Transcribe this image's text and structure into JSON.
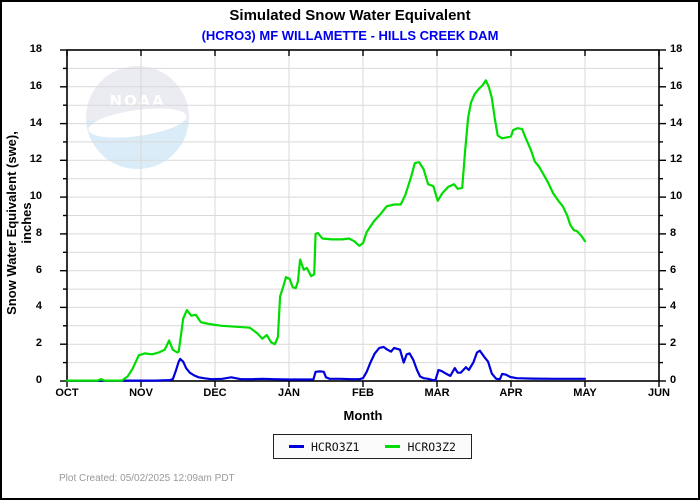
{
  "header": {
    "title": "Simulated Snow Water Equivalent",
    "subtitle": "(HCRO3) MF WILLAMETTE - HILLS CREEK DAM",
    "subtitle_color": "#0000ee"
  },
  "watermark": {
    "text": "NOAA"
  },
  "chart_data": {
    "type": "line",
    "title": "Simulated Snow Water Equivalent",
    "subtitle": "(HCRO3) MF WILLAMETTE - HILLS CREEK DAM",
    "xlabel": "Month",
    "ylabel": "Snow Water Equivalent (swe),  inches",
    "x_tick_labels": [
      "OCT",
      "NOV",
      "DEC",
      "JAN",
      "FEB",
      "MAR",
      "APR",
      "MAY",
      "JUN"
    ],
    "x_unit": "months since Oct 1 (0=OCT ... 8=JUN)",
    "xlim": [
      0,
      8
    ],
    "ylim": [
      0,
      18
    ],
    "y_major_tick_step": 2,
    "y_minor_tick_step": 1,
    "grid": "light gray; horizontal every 1 inch, vertical at each month",
    "legend_position": "below plot, centered",
    "grid_color": "#d9d9d9",
    "series": [
      {
        "name": "HCRO3Z1",
        "color": "#0000dd",
        "x": [
          0.0,
          0.5,
          1.0,
          1.2,
          1.3,
          1.39,
          1.43,
          1.47,
          1.51,
          1.53,
          1.57,
          1.61,
          1.66,
          1.72,
          1.78,
          1.85,
          1.95,
          2.1,
          2.22,
          2.28,
          2.35,
          2.5,
          2.65,
          2.8,
          3.0,
          3.2,
          3.33,
          3.36,
          3.42,
          3.47,
          3.5,
          3.55,
          3.7,
          3.85,
          3.95,
          4.0,
          4.05,
          4.1,
          4.16,
          4.22,
          4.28,
          4.33,
          4.38,
          4.42,
          4.46,
          4.5,
          4.55,
          4.59,
          4.63,
          4.68,
          4.73,
          4.77,
          4.82,
          4.88,
          4.94,
          4.98,
          5.02,
          5.06,
          5.12,
          5.18,
          5.24,
          5.28,
          5.32,
          5.39,
          5.43,
          5.49,
          5.54,
          5.58,
          5.64,
          5.69,
          5.74,
          5.8,
          5.85,
          5.88,
          5.93,
          5.99,
          6.08,
          6.3,
          6.6,
          7.0
        ],
        "y": [
          0.02,
          0.02,
          0.02,
          0.02,
          0.03,
          0.05,
          0.1,
          0.55,
          1.05,
          1.2,
          1.05,
          0.7,
          0.45,
          0.3,
          0.2,
          0.15,
          0.1,
          0.12,
          0.2,
          0.15,
          0.1,
          0.1,
          0.12,
          0.1,
          0.08,
          0.08,
          0.08,
          0.5,
          0.52,
          0.5,
          0.2,
          0.12,
          0.12,
          0.1,
          0.1,
          0.15,
          0.5,
          1.0,
          1.5,
          1.8,
          1.85,
          1.7,
          1.6,
          1.8,
          1.75,
          1.7,
          1.0,
          1.45,
          1.5,
          1.15,
          0.6,
          0.25,
          0.15,
          0.12,
          0.05,
          0.05,
          0.6,
          0.55,
          0.4,
          0.28,
          0.7,
          0.45,
          0.45,
          0.75,
          0.6,
          1.0,
          1.55,
          1.65,
          1.3,
          1.05,
          0.4,
          0.12,
          0.1,
          0.38,
          0.35,
          0.22,
          0.15,
          0.13,
          0.12,
          0.12
        ]
      },
      {
        "name": "HCRO3Z2",
        "color": "#00dd00",
        "x": [
          0.0,
          0.3,
          0.41,
          0.46,
          0.51,
          0.6,
          0.74,
          0.82,
          0.89,
          0.97,
          1.05,
          1.15,
          1.24,
          1.32,
          1.38,
          1.43,
          1.49,
          1.51,
          1.57,
          1.62,
          1.68,
          1.74,
          1.81,
          1.92,
          2.09,
          2.3,
          2.47,
          2.57,
          2.64,
          2.7,
          2.76,
          2.81,
          2.85,
          2.88,
          2.92,
          2.96,
          3.01,
          3.05,
          3.09,
          3.12,
          3.15,
          3.2,
          3.24,
          3.3,
          3.34,
          3.36,
          3.39,
          3.45,
          3.58,
          3.72,
          3.81,
          3.88,
          3.95,
          4.0,
          4.05,
          4.15,
          4.24,
          4.32,
          4.42,
          4.51,
          4.57,
          4.65,
          4.7,
          4.76,
          4.82,
          4.88,
          4.95,
          5.01,
          5.07,
          5.15,
          5.23,
          5.28,
          5.34,
          5.38,
          5.42,
          5.46,
          5.51,
          5.57,
          5.62,
          5.66,
          5.7,
          5.74,
          5.78,
          5.82,
          5.88,
          5.95,
          6.0,
          6.03,
          6.09,
          6.15,
          6.2,
          6.27,
          6.32,
          6.38,
          6.43,
          6.5,
          6.57,
          6.64,
          6.7,
          6.76,
          6.8,
          6.85,
          6.89,
          6.95,
          7.0
        ],
        "y": [
          0.02,
          0.02,
          0.02,
          0.1,
          0.02,
          0.02,
          0.02,
          0.25,
          0.7,
          1.4,
          1.5,
          1.45,
          1.55,
          1.7,
          2.2,
          1.7,
          1.55,
          1.6,
          3.4,
          3.85,
          3.55,
          3.6,
          3.2,
          3.1,
          3.0,
          2.95,
          2.9,
          2.6,
          2.3,
          2.5,
          2.1,
          2.0,
          2.4,
          4.6,
          5.1,
          5.65,
          5.55,
          5.1,
          5.05,
          5.4,
          6.6,
          6.05,
          6.15,
          5.7,
          5.8,
          8.0,
          8.05,
          7.75,
          7.7,
          7.7,
          7.75,
          7.6,
          7.35,
          7.5,
          8.1,
          8.7,
          9.1,
          9.5,
          9.6,
          9.6,
          10.1,
          11.1,
          11.85,
          11.9,
          11.5,
          10.7,
          10.6,
          9.8,
          10.2,
          10.55,
          10.7,
          10.45,
          10.5,
          12.5,
          14.3,
          15.15,
          15.6,
          15.9,
          16.1,
          16.35,
          16.0,
          15.4,
          14.3,
          13.35,
          13.2,
          13.25,
          13.3,
          13.65,
          13.75,
          13.7,
          13.2,
          12.55,
          11.95,
          11.65,
          11.3,
          10.8,
          10.2,
          9.8,
          9.5,
          9.0,
          8.5,
          8.2,
          8.15,
          7.9,
          7.6
        ]
      }
    ]
  },
  "legend": {
    "items": [
      {
        "label": "HCRO3Z1",
        "color": "#0000dd"
      },
      {
        "label": "HCRO3Z2",
        "color": "#00dd00"
      }
    ]
  },
  "footer": {
    "created_text": "Plot Created: 05/02/2025 12:09am PDT"
  }
}
